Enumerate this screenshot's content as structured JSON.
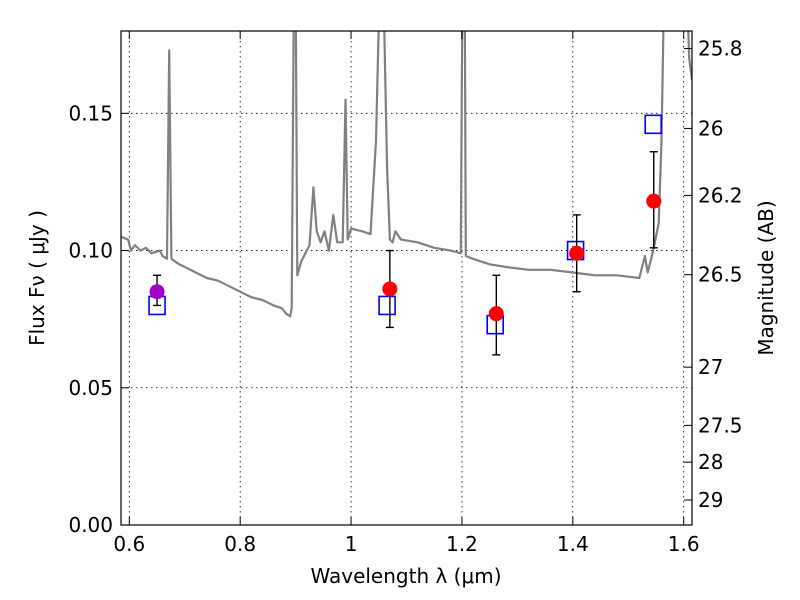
{
  "chart_data": {
    "type": "scatter",
    "xlabel": "Wavelength  λ (μm)",
    "ylabel": "Flux  Fν  ( μJy )",
    "ylabel_right": "Magnitude (AB)",
    "xlim": [
      0.585,
      1.615
    ],
    "ylim": [
      0.0,
      0.18
    ],
    "grid": true,
    "x_ticks": [
      0.6,
      0.8,
      1.0,
      1.2,
      1.4,
      1.6
    ],
    "x_tick_labels": [
      "0.6",
      "0.8",
      "1",
      "1.2",
      "1.4",
      "1.6"
    ],
    "y_ticks": [
      0.0,
      0.05,
      0.1,
      0.15
    ],
    "y_tick_labels": [
      "0.00",
      "0.05",
      "0.10",
      "0.15"
    ],
    "right_ticks": [
      {
        "label": "25.8",
        "flux": 0.1736
      },
      {
        "label": "26",
        "flux": 0.1445
      },
      {
        "label": "26.2",
        "flux": 0.1201
      },
      {
        "label": "26.5",
        "flux": 0.0912
      },
      {
        "label": "27",
        "flux": 0.0575
      },
      {
        "label": "27.5",
        "flux": 0.0363
      },
      {
        "label": "28",
        "flux": 0.0229
      },
      {
        "label": "29",
        "flux": 0.0091
      }
    ],
    "colors": {
      "model": "#808080",
      "observed": "#ff0000",
      "observed_first": "#a000c8",
      "synthetic": "#0000ff",
      "errorbar": "#000000"
    },
    "model_spectrum": [
      [
        0.585,
        0.105
      ],
      [
        0.598,
        0.104
      ],
      [
        0.603,
        0.1
      ],
      [
        0.61,
        0.102
      ],
      [
        0.62,
        0.1
      ],
      [
        0.63,
        0.101
      ],
      [
        0.64,
        0.099
      ],
      [
        0.655,
        0.1
      ],
      [
        0.66,
        0.098
      ],
      [
        0.668,
        0.097
      ],
      [
        0.672,
        0.173
      ],
      [
        0.676,
        0.097
      ],
      [
        0.69,
        0.095
      ],
      [
        0.7,
        0.094
      ],
      [
        0.72,
        0.092
      ],
      [
        0.74,
        0.09
      ],
      [
        0.76,
        0.089
      ],
      [
        0.78,
        0.087
      ],
      [
        0.8,
        0.085
      ],
      [
        0.82,
        0.083
      ],
      [
        0.84,
        0.082
      ],
      [
        0.86,
        0.08
      ],
      [
        0.875,
        0.079
      ],
      [
        0.883,
        0.077
      ],
      [
        0.89,
        0.076
      ],
      [
        0.893,
        0.079
      ],
      [
        0.897,
        0.2
      ],
      [
        0.9,
        0.2
      ],
      [
        0.903,
        0.091
      ],
      [
        0.91,
        0.096
      ],
      [
        0.925,
        0.102
      ],
      [
        0.932,
        0.123
      ],
      [
        0.938,
        0.107
      ],
      [
        0.945,
        0.103
      ],
      [
        0.952,
        0.107
      ],
      [
        0.96,
        0.1
      ],
      [
        0.968,
        0.113
      ],
      [
        0.975,
        0.103
      ],
      [
        0.985,
        0.103
      ],
      [
        0.99,
        0.155
      ],
      [
        0.994,
        0.104
      ],
      [
        1.0,
        0.108
      ],
      [
        1.02,
        0.107
      ],
      [
        1.035,
        0.106
      ],
      [
        1.045,
        0.14
      ],
      [
        1.052,
        0.2
      ],
      [
        1.058,
        0.2
      ],
      [
        1.065,
        0.13
      ],
      [
        1.07,
        0.104
      ],
      [
        1.075,
        0.103
      ],
      [
        1.08,
        0.107
      ],
      [
        1.09,
        0.104
      ],
      [
        1.12,
        0.103
      ],
      [
        1.15,
        0.101
      ],
      [
        1.18,
        0.1
      ],
      [
        1.198,
        0.099
      ],
      [
        1.201,
        0.2
      ],
      [
        1.205,
        0.2
      ],
      [
        1.207,
        0.098
      ],
      [
        1.22,
        0.097
      ],
      [
        1.25,
        0.095
      ],
      [
        1.28,
        0.094
      ],
      [
        1.32,
        0.093
      ],
      [
        1.36,
        0.093
      ],
      [
        1.4,
        0.092
      ],
      [
        1.44,
        0.091
      ],
      [
        1.48,
        0.091
      ],
      [
        1.52,
        0.09
      ],
      [
        1.53,
        0.098
      ],
      [
        1.535,
        0.092
      ],
      [
        1.545,
        0.1
      ],
      [
        1.555,
        0.11
      ],
      [
        1.56,
        0.14
      ],
      [
        1.565,
        0.2
      ],
      [
        1.575,
        0.2
      ],
      [
        1.59,
        0.2
      ],
      [
        1.605,
        0.2
      ],
      [
        1.61,
        0.17
      ],
      [
        1.615,
        0.162
      ]
    ],
    "synthetic_points": {
      "x": [
        0.65,
        1.065,
        1.26,
        1.405,
        1.545
      ],
      "y": [
        0.08,
        0.08,
        0.073,
        0.1,
        0.146
      ]
    },
    "observed_points": {
      "x": [
        0.65,
        1.07,
        1.262,
        1.407,
        1.546
      ],
      "y": [
        0.085,
        0.086,
        0.077,
        0.099,
        0.118
      ],
      "yerr_low": [
        0.08,
        0.072,
        0.062,
        0.085,
        0.101
      ],
      "yerr_high": [
        0.091,
        0.1,
        0.091,
        0.113,
        0.136
      ]
    }
  }
}
